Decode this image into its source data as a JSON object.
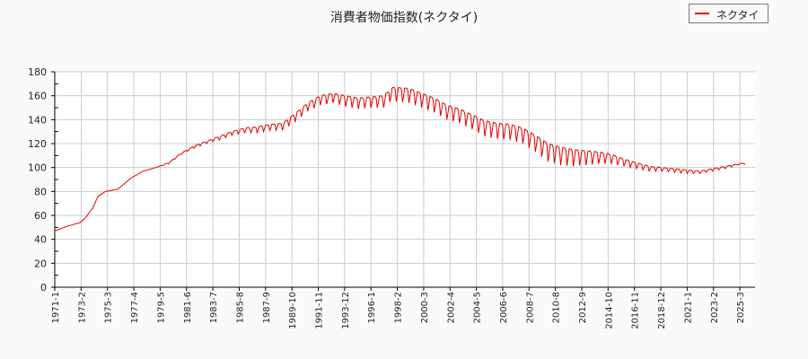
{
  "title": "消費者物価指数(ネクタイ)",
  "legend": {
    "label": "ネクタイ",
    "color": "#e00000"
  },
  "chart_data": {
    "type": "line",
    "title": "消費者物価指数(ネクタイ)",
    "xlabel": "",
    "ylabel": "",
    "ylim": [
      0,
      180
    ],
    "yticks": [
      0,
      20,
      40,
      60,
      80,
      100,
      120,
      140,
      160,
      180
    ],
    "grid": true,
    "legend_position": "top-right",
    "x_tick_labels": [
      "1971-1",
      "1973-2",
      "1975-3",
      "1977-4",
      "1979-5",
      "1981-6",
      "1983-7",
      "1985-8",
      "1987-9",
      "1989-10",
      "1991-11",
      "1993-12",
      "1996-1",
      "1998-2",
      "2000-3",
      "2002-4",
      "2004-5",
      "2006-6",
      "2008-7",
      "2010-8",
      "2012-9",
      "2014-10",
      "2016-11",
      "2018-12",
      "2021-1",
      "2023-2",
      "2025-3"
    ],
    "series": [
      {
        "name": "ネクタイ",
        "color": "#e00000",
        "x": [
          "1971-1",
          "1972-1",
          "1973-1",
          "1973-6",
          "1974-1",
          "1974-6",
          "1975-1",
          "1976-1",
          "1977-1",
          "1978-1",
          "1979-1",
          "1980-1",
          "1981-1",
          "1982-1",
          "1983-1",
          "1984-1",
          "1985-1",
          "1986-1",
          "1987-1",
          "1988-1",
          "1989-1",
          "1990-1",
          "1991-1",
          "1992-1",
          "1993-1",
          "1994-1",
          "1995-1",
          "1996-1",
          "1997-1",
          "1997-10",
          "1998-1",
          "1999-1",
          "2000-1",
          "2001-1",
          "2002-1",
          "2003-1",
          "2004-1",
          "2005-1",
          "2006-1",
          "2007-1",
          "2008-1",
          "2009-1",
          "2010-1",
          "2011-1",
          "2012-1",
          "2013-1",
          "2014-1",
          "2015-1",
          "2016-1",
          "2017-1",
          "2018-1",
          "2019-1",
          "2020-1",
          "2021-1",
          "2022-1",
          "2023-1",
          "2024-1",
          "2025-1",
          "2025-8"
        ],
        "values": [
          47,
          51,
          54,
          58,
          66,
          76,
          80,
          82,
          91,
          97,
          100,
          104,
          112,
          118,
          122,
          126,
          130,
          133,
          134,
          136,
          137,
          145,
          154,
          160,
          162,
          160,
          158,
          159,
          160,
          167,
          167,
          166,
          162,
          158,
          152,
          149,
          144,
          139,
          137,
          136,
          133,
          127,
          120,
          117,
          115,
          114,
          113,
          111,
          107,
          104,
          101,
          100,
          99,
          98,
          97,
          99,
          101,
          103,
          104
        ],
        "seasonal_amplitude": [
          0,
          0,
          0,
          0,
          0,
          0,
          0,
          0,
          0,
          0,
          0,
          1,
          1,
          2,
          2,
          3,
          3,
          4,
          5,
          5,
          6,
          7,
          7,
          8,
          8,
          9,
          9,
          9,
          10,
          10,
          12,
          12,
          12,
          12,
          12,
          12,
          12,
          13,
          13,
          13,
          13,
          14,
          15,
          15,
          14,
          12,
          10,
          8,
          6,
          5,
          4,
          3,
          3,
          3,
          2,
          2,
          2,
          1,
          1
        ]
      }
    ]
  }
}
